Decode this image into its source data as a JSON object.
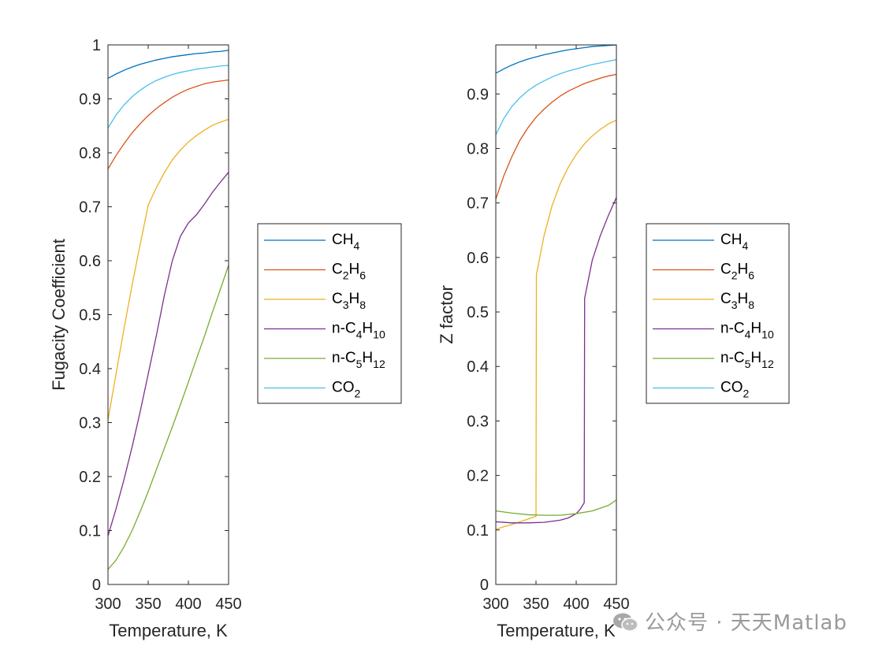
{
  "watermark": {
    "text": "公众号 · 天天Matlab",
    "icon": "wechat-icon"
  },
  "chart_data": [
    {
      "type": "line",
      "id": "fugacity",
      "title": "",
      "xlabel": "Temperature, K",
      "ylabel": "Fugacity Coefficient",
      "xlim": [
        300,
        450
      ],
      "ylim": [
        0,
        1
      ],
      "xticks": [
        300,
        350,
        400,
        450
      ],
      "yticks": [
        0,
        0.1,
        0.2,
        0.3,
        0.4,
        0.5,
        0.6,
        0.7,
        0.8,
        0.9,
        1
      ],
      "legend_position": "outside-right",
      "x": [
        300,
        310,
        320,
        330,
        340,
        350,
        360,
        370,
        380,
        390,
        400,
        410,
        420,
        430,
        440,
        450
      ],
      "series": [
        {
          "name": "CH4",
          "label": "CH",
          "sub": "4",
          "color": "#0072BD",
          "values": [
            0.938,
            0.946,
            0.953,
            0.959,
            0.964,
            0.968,
            0.972,
            0.975,
            0.978,
            0.98,
            0.982,
            0.984,
            0.985,
            0.987,
            0.988,
            0.99
          ]
        },
        {
          "name": "C2H6",
          "label": "C",
          "sub": "2",
          "label2": "H",
          "sub2": "6",
          "color": "#D95319",
          "values": [
            0.77,
            0.795,
            0.817,
            0.837,
            0.854,
            0.869,
            0.882,
            0.893,
            0.903,
            0.911,
            0.918,
            0.923,
            0.928,
            0.931,
            0.933,
            0.935
          ]
        },
        {
          "name": "C3H8",
          "label": "C",
          "sub": "3",
          "label2": "H",
          "sub2": "8",
          "color": "#EDB120",
          "values": [
            0.305,
            0.39,
            0.475,
            0.555,
            0.63,
            0.703,
            0.735,
            0.763,
            0.787,
            0.805,
            0.82,
            0.832,
            0.842,
            0.851,
            0.857,
            0.862
          ]
        },
        {
          "name": "n-C4H10",
          "label": "n-C",
          "sub": "4",
          "label2": "H",
          "sub2": "10",
          "color": "#7E2F8E",
          "values": [
            0.09,
            0.14,
            0.195,
            0.255,
            0.32,
            0.39,
            0.46,
            0.535,
            0.6,
            0.645,
            0.67,
            0.685,
            0.705,
            0.727,
            0.746,
            0.764
          ]
        },
        {
          "name": "n-C5H12",
          "label": "n-C",
          "sub": "5",
          "label2": "H",
          "sub2": "12",
          "color": "#77AC30",
          "values": [
            0.028,
            0.045,
            0.07,
            0.1,
            0.135,
            0.172,
            0.212,
            0.252,
            0.292,
            0.333,
            0.375,
            0.418,
            0.46,
            0.505,
            0.548,
            0.592
          ]
        },
        {
          "name": "CO2",
          "label": "CO",
          "sub": "2",
          "color": "#4DBEEE",
          "values": [
            0.846,
            0.87,
            0.889,
            0.904,
            0.916,
            0.926,
            0.934,
            0.94,
            0.945,
            0.949,
            0.952,
            0.955,
            0.957,
            0.959,
            0.961,
            0.962
          ]
        }
      ]
    },
    {
      "type": "line",
      "id": "zfactor",
      "title": "",
      "xlabel": "Temperature, K",
      "ylabel": "Z factor",
      "xlim": [
        300,
        450
      ],
      "ylim": [
        0,
        0.99
      ],
      "xticks": [
        300,
        350,
        400,
        450
      ],
      "yticks": [
        0,
        0.1,
        0.2,
        0.3,
        0.4,
        0.5,
        0.6,
        0.7,
        0.8,
        0.9
      ],
      "legend_position": "outside-right",
      "series": [
        {
          "name": "CH4",
          "label": "CH",
          "sub": "4",
          "color": "#0072BD",
          "x": [
            300,
            310,
            320,
            330,
            340,
            350,
            360,
            370,
            380,
            390,
            400,
            410,
            420,
            430,
            440,
            450
          ],
          "values": [
            0.938,
            0.946,
            0.953,
            0.959,
            0.964,
            0.968,
            0.972,
            0.975,
            0.978,
            0.981,
            0.983,
            0.985,
            0.987,
            0.988,
            0.989,
            0.99
          ]
        },
        {
          "name": "C2H6",
          "label": "C",
          "sub": "2",
          "label2": "H",
          "sub2": "6",
          "color": "#D95319",
          "x": [
            300,
            310,
            320,
            330,
            340,
            350,
            360,
            370,
            380,
            390,
            400,
            410,
            420,
            430,
            440,
            450
          ],
          "values": [
            0.707,
            0.75,
            0.785,
            0.815,
            0.838,
            0.857,
            0.872,
            0.885,
            0.896,
            0.905,
            0.912,
            0.919,
            0.924,
            0.929,
            0.933,
            0.936
          ]
        },
        {
          "name": "C3H8",
          "label": "C",
          "sub": "3",
          "label2": "H",
          "sub2": "8",
          "color": "#EDB120",
          "x": [
            300,
            310,
            320,
            330,
            340,
            350,
            350.5,
            360,
            370,
            380,
            390,
            400,
            410,
            420,
            430,
            440,
            450
          ],
          "values": [
            0.101,
            0.106,
            0.11,
            0.115,
            0.12,
            0.125,
            0.568,
            0.64,
            0.695,
            0.735,
            0.765,
            0.789,
            0.808,
            0.823,
            0.835,
            0.845,
            0.852
          ]
        },
        {
          "name": "n-C4H10",
          "label": "n-C",
          "sub": "4",
          "label2": "H",
          "sub2": "10",
          "color": "#7E2F8E",
          "x": [
            300,
            320,
            340,
            360,
            380,
            390,
            400,
            405,
            410,
            410.5,
            420,
            430,
            440,
            450
          ],
          "values": [
            0.115,
            0.113,
            0.113,
            0.114,
            0.118,
            0.122,
            0.13,
            0.138,
            0.15,
            0.525,
            0.595,
            0.64,
            0.677,
            0.71
          ]
        },
        {
          "name": "n-C5H12",
          "label": "n-C",
          "sub": "5",
          "label2": "H",
          "sub2": "12",
          "color": "#77AC30",
          "x": [
            300,
            320,
            340,
            360,
            380,
            400,
            420,
            440,
            450
          ],
          "values": [
            0.135,
            0.131,
            0.128,
            0.127,
            0.127,
            0.13,
            0.135,
            0.145,
            0.155
          ]
        },
        {
          "name": "CO2",
          "label": "CO",
          "sub": "2",
          "color": "#4DBEEE",
          "x": [
            300,
            310,
            320,
            330,
            340,
            350,
            360,
            370,
            380,
            390,
            400,
            410,
            420,
            430,
            440,
            450
          ],
          "values": [
            0.825,
            0.855,
            0.877,
            0.893,
            0.906,
            0.916,
            0.924,
            0.931,
            0.937,
            0.942,
            0.946,
            0.95,
            0.954,
            0.957,
            0.96,
            0.963
          ]
        }
      ]
    }
  ]
}
